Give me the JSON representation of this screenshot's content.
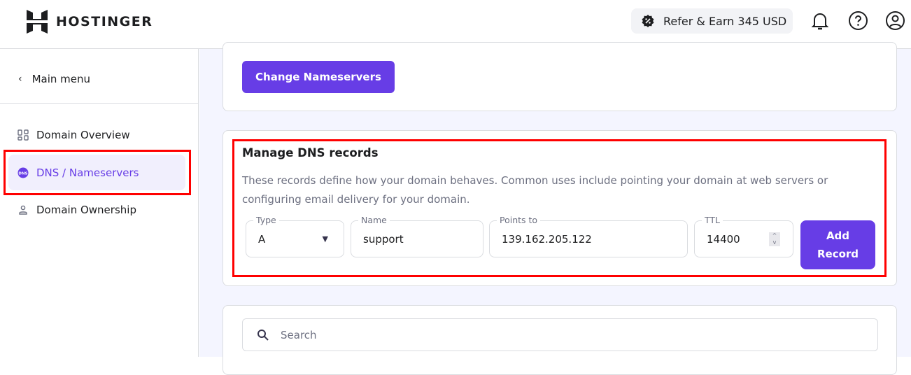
{
  "header": {
    "brand": "HOSTINGER",
    "refer_label": "Refer & Earn 345 USD",
    "icons": [
      "bell-icon",
      "help-icon",
      "account-icon"
    ]
  },
  "sidebar": {
    "back_label": "Main menu",
    "items": [
      {
        "label": "Domain Overview",
        "icon": "grid-icon"
      },
      {
        "label": "DNS / Nameservers",
        "icon": "dns-icon",
        "active": true
      },
      {
        "label": "Domain Ownership",
        "icon": "person-icon"
      }
    ]
  },
  "nameservers": {
    "button": "Change Nameservers"
  },
  "dns": {
    "title": "Manage DNS records",
    "description": "These records define how your domain behaves. Common uses include pointing your domain at web servers or configuring email delivery for your domain.",
    "type": {
      "label": "Type",
      "value": "A"
    },
    "name": {
      "label": "Name",
      "value": "support"
    },
    "points_to": {
      "label": "Points to",
      "value": "139.162.205.122"
    },
    "ttl": {
      "label": "TTL",
      "value": "14400"
    },
    "add_button": "Add Record"
  },
  "search": {
    "placeholder": "Search"
  },
  "colors": {
    "accent": "#673de6",
    "highlight": "#ff0000"
  }
}
